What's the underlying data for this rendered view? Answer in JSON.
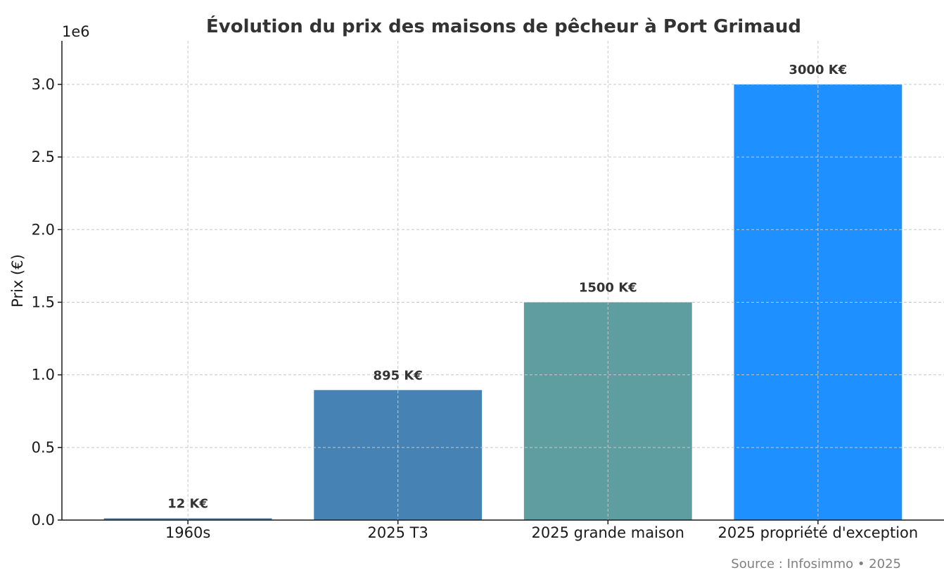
{
  "chart_data": {
    "type": "bar",
    "title": "Évolution du prix des maisons de pêcheur à Port Grimaud",
    "xlabel": "",
    "ylabel": "Prix (€)",
    "y_offset_text": "1e6",
    "categories": [
      "1960s",
      "2025 T3",
      "2025 grande maison",
      "2025 propriété d'exception"
    ],
    "values": [
      12000,
      895000,
      1500000,
      3000000
    ],
    "data_labels": [
      "12 K€",
      "895 K€",
      "1500 K€",
      "3000 K€"
    ],
    "bar_colors": [
      "#4682b4",
      "#4682b4",
      "#5f9ea0",
      "#1e90ff"
    ],
    "ylim": [
      0,
      3300000
    ],
    "yticks": [
      0,
      500000,
      1000000,
      1500000,
      2000000,
      2500000,
      3000000
    ],
    "ytick_labels": [
      "0.0",
      "0.5",
      "1.0",
      "1.5",
      "2.0",
      "2.5",
      "3.0"
    ],
    "grid": true,
    "source_note": "Source : Infosimmo • 2025"
  }
}
